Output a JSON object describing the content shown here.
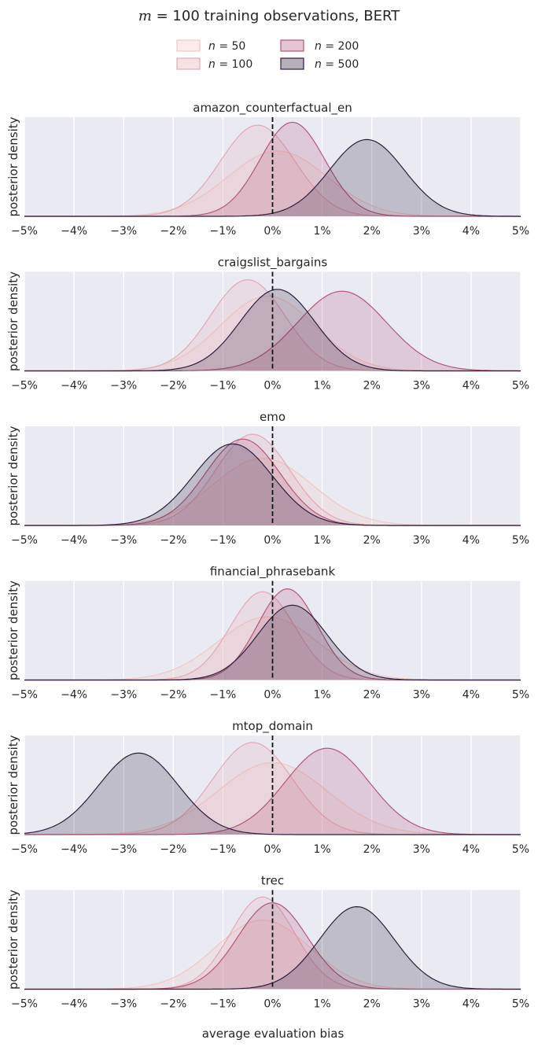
{
  "title_prefix": "m",
  "title_rest": " = 100 training observations, BERT",
  "legend": {
    "entries": [
      {
        "var": "n",
        "eq": " = ",
        "value": "50",
        "color": "#f0c9c0"
      },
      {
        "var": "n",
        "eq": " = ",
        "value": "100",
        "color": "#e4a9b2"
      },
      {
        "var": "n",
        "eq": " = ",
        "value": "200",
        "color": "#b3587a"
      },
      {
        "var": "n",
        "eq": " = ",
        "value": "500",
        "color": "#2d1e3e"
      }
    ]
  },
  "chart_data": {
    "type": "area",
    "ylabel": "posterior density",
    "xlabel": "average evaluation bias",
    "xlim": [
      -5,
      5
    ],
    "xticks": [
      -5,
      -4,
      -3,
      -2,
      -1,
      0,
      1,
      2,
      3,
      4,
      5
    ],
    "xtick_labels": [
      "−5%",
      "−4%",
      "−3%",
      "−2%",
      "−1%",
      "0%",
      "1%",
      "2%",
      "3%",
      "4%",
      "5%"
    ],
    "reference_line_x": 0,
    "series_names": [
      "n = 50",
      "n = 100",
      "n = 200",
      "n = 500"
    ],
    "panels": [
      {
        "title": "amazon_counterfactual_en",
        "series": [
          {
            "name": "n = 50",
            "mean": 0.1,
            "sd": 1.0,
            "peak": 0.68
          },
          {
            "name": "n = 100",
            "mean": -0.3,
            "sd": 0.75,
            "peak": 0.95
          },
          {
            "name": "n = 200",
            "mean": 0.4,
            "sd": 0.65,
            "peak": 0.98
          },
          {
            "name": "n = 500",
            "mean": 1.9,
            "sd": 0.75,
            "peak": 0.8
          }
        ]
      },
      {
        "title": "craigslist_bargains",
        "series": [
          {
            "name": "n = 50",
            "mean": -0.1,
            "sd": 0.95,
            "peak": 0.78
          },
          {
            "name": "n = 100",
            "mean": -0.5,
            "sd": 0.75,
            "peak": 0.95
          },
          {
            "name": "n = 200",
            "mean": 1.4,
            "sd": 0.9,
            "peak": 0.83
          },
          {
            "name": "n = 500",
            "mean": 0.1,
            "sd": 0.75,
            "peak": 0.85
          }
        ]
      },
      {
        "title": "emo",
        "series": [
          {
            "name": "n = 50",
            "mean": -0.2,
            "sd": 1.0,
            "peak": 0.7
          },
          {
            "name": "n = 100",
            "mean": -0.4,
            "sd": 0.75,
            "peak": 0.95
          },
          {
            "name": "n = 200",
            "mean": -0.6,
            "sd": 0.75,
            "peak": 0.9
          },
          {
            "name": "n = 500",
            "mean": -0.8,
            "sd": 0.8,
            "peak": 0.85
          }
        ]
      },
      {
        "title": "financial_phrasebank",
        "series": [
          {
            "name": "n = 50",
            "mean": -0.1,
            "sd": 1.0,
            "peak": 0.66
          },
          {
            "name": "n = 100",
            "mean": -0.2,
            "sd": 0.65,
            "peak": 0.92
          },
          {
            "name": "n = 200",
            "mean": 0.3,
            "sd": 0.6,
            "peak": 0.95
          },
          {
            "name": "n = 500",
            "mean": 0.4,
            "sd": 0.7,
            "peak": 0.78
          }
        ]
      },
      {
        "title": "mtop_domain",
        "series": [
          {
            "name": "n = 50",
            "mean": 0.0,
            "sd": 1.1,
            "peak": 0.75
          },
          {
            "name": "n = 100",
            "mean": -0.4,
            "sd": 0.8,
            "peak": 0.96
          },
          {
            "name": "n = 200",
            "mean": 1.1,
            "sd": 0.85,
            "peak": 0.9
          },
          {
            "name": "n = 500",
            "mean": -2.7,
            "sd": 0.8,
            "peak": 0.85
          }
        ]
      },
      {
        "title": "trec",
        "series": [
          {
            "name": "n = 50",
            "mean": -0.2,
            "sd": 0.95,
            "peak": 0.72
          },
          {
            "name": "n = 100",
            "mean": -0.2,
            "sd": 0.65,
            "peak": 0.96
          },
          {
            "name": "n = 200",
            "mean": 0.0,
            "sd": 0.7,
            "peak": 0.9
          },
          {
            "name": "n = 500",
            "mean": 1.7,
            "sd": 0.75,
            "peak": 0.86
          }
        ]
      }
    ]
  }
}
